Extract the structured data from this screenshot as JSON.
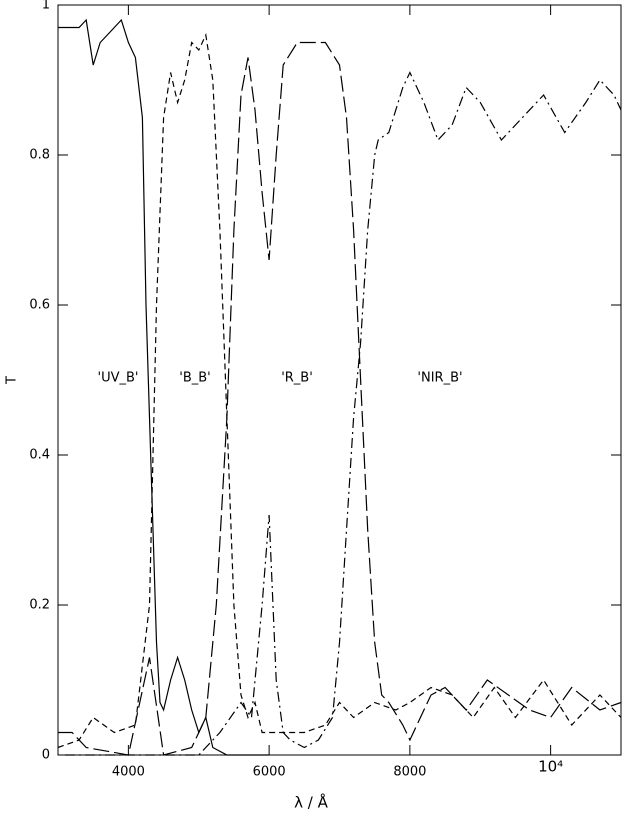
{
  "chart_data": {
    "type": "line",
    "x_label": "λ / Å",
    "y_label": "T",
    "xlim": [
      3000,
      11000
    ],
    "ylim": [
      0,
      1
    ],
    "xticks": [
      4000,
      6000,
      8000,
      {
        "value": 10000,
        "label": "10⁴"
      }
    ],
    "yticks": [
      0,
      0.2,
      0.4,
      0.6,
      0.8,
      1
    ],
    "series": [
      {
        "name": "'UV_B'",
        "color": "#000000",
        "style": "solid",
        "x": [
          3000,
          3300,
          3400,
          3500,
          3600,
          3700,
          3800,
          3900,
          4000,
          4100,
          4200,
          4250,
          4300,
          4350,
          4400,
          4450,
          4500,
          4600,
          4700,
          4800,
          4900,
          5000,
          5100,
          5200,
          5400,
          6000
        ],
        "values": [
          0.97,
          0.97,
          0.98,
          0.92,
          0.95,
          0.96,
          0.97,
          0.98,
          0.95,
          0.93,
          0.85,
          0.6,
          0.45,
          0.3,
          0.15,
          0.07,
          0.06,
          0.1,
          0.13,
          0.1,
          0.06,
          0.03,
          0.05,
          0.01,
          0.0,
          0.0
        ]
      },
      {
        "name": "'B_B'",
        "color": "#000000",
        "style": "dashed",
        "x": [
          3000,
          3300,
          3500,
          3800,
          4100,
          4300,
          4400,
          4500,
          4600,
          4700,
          4800,
          4900,
          5000,
          5100,
          5200,
          5300,
          5400,
          5500,
          5600,
          5700,
          5800,
          5900,
          6000,
          6500,
          6800,
          7000,
          7200,
          7500,
          7800,
          8000,
          8300,
          8600,
          8900,
          9200,
          9500,
          9900,
          10300,
          10700,
          11000
        ],
        "values": [
          0.01,
          0.02,
          0.05,
          0.03,
          0.04,
          0.2,
          0.6,
          0.85,
          0.91,
          0.87,
          0.9,
          0.95,
          0.94,
          0.96,
          0.9,
          0.7,
          0.45,
          0.2,
          0.08,
          0.05,
          0.07,
          0.03,
          0.03,
          0.03,
          0.04,
          0.07,
          0.05,
          0.07,
          0.06,
          0.07,
          0.09,
          0.08,
          0.05,
          0.09,
          0.05,
          0.1,
          0.04,
          0.08,
          0.05
        ]
      },
      {
        "name": "'R_B'",
        "color": "#000000",
        "style": "longdash",
        "x": [
          3000,
          3200,
          3400,
          4000,
          4300,
          4500,
          4900,
          5000,
          5100,
          5250,
          5400,
          5500,
          5600,
          5700,
          5800,
          5900,
          6000,
          6100,
          6200,
          6400,
          6800,
          7000,
          7100,
          7200,
          7300,
          7400,
          7500,
          7600,
          7700,
          7900,
          8000,
          8100,
          8300,
          8500,
          8800,
          9100,
          9400,
          9700,
          10000,
          10300,
          10700,
          11000
        ],
        "values": [
          0.03,
          0.03,
          0.01,
          0.0,
          0.13,
          0.0,
          0.01,
          0.03,
          0.05,
          0.2,
          0.45,
          0.7,
          0.88,
          0.93,
          0.86,
          0.75,
          0.66,
          0.8,
          0.92,
          0.95,
          0.95,
          0.92,
          0.85,
          0.7,
          0.5,
          0.3,
          0.15,
          0.08,
          0.07,
          0.04,
          0.02,
          0.04,
          0.08,
          0.09,
          0.06,
          0.1,
          0.08,
          0.06,
          0.05,
          0.09,
          0.06,
          0.07
        ]
      },
      {
        "name": "'NIR_B'",
        "color": "#000000",
        "style": "dashdot",
        "x": [
          3100,
          4000,
          5000,
          5100,
          5300,
          5600,
          5750,
          5900,
          6000,
          6100,
          6200,
          6300,
          6500,
          6700,
          6900,
          7000,
          7100,
          7200,
          7300,
          7400,
          7500,
          7550,
          7700,
          7900,
          8000,
          8200,
          8400,
          8600,
          8800,
          9000,
          9300,
          9600,
          9900,
          10200,
          10500,
          10700,
          10900,
          11000
        ],
        "values": [
          0.0,
          0.0,
          0.0,
          0.01,
          0.03,
          0.07,
          0.05,
          0.2,
          0.32,
          0.1,
          0.03,
          0.02,
          0.01,
          0.02,
          0.05,
          0.15,
          0.3,
          0.45,
          0.55,
          0.7,
          0.8,
          0.82,
          0.83,
          0.89,
          0.91,
          0.87,
          0.82,
          0.84,
          0.89,
          0.87,
          0.82,
          0.85,
          0.88,
          0.83,
          0.87,
          0.9,
          0.88,
          0.86
        ]
      }
    ]
  }
}
